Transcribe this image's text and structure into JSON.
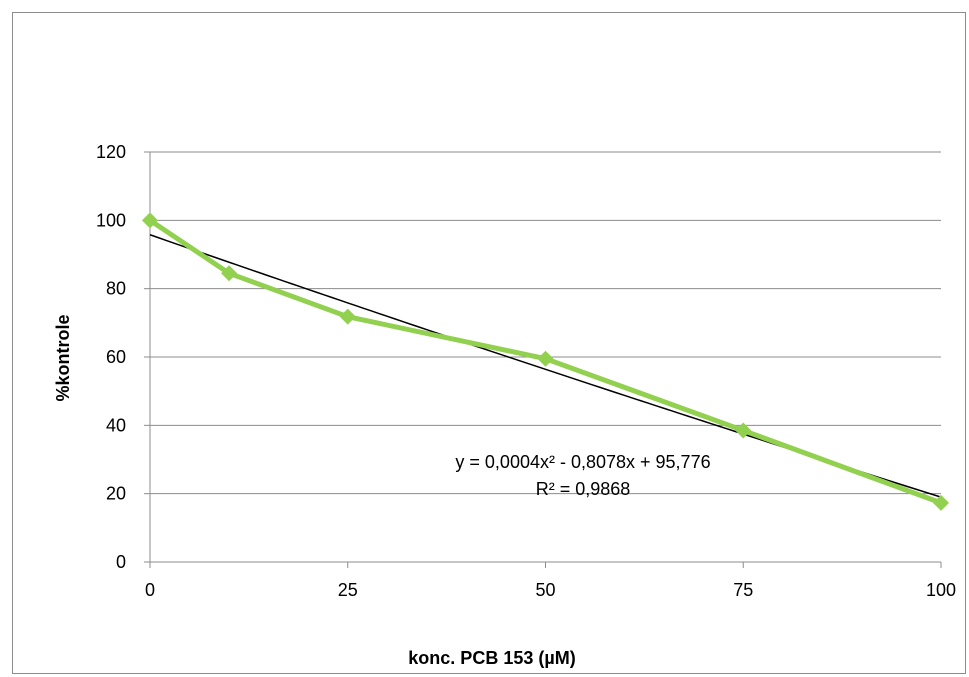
{
  "chart_data": {
    "type": "line",
    "xlabel": "konc. PCB 153 (µM)",
    "ylabel": "%kontrole",
    "x_ticks": [
      "0",
      "25",
      "50",
      "75",
      "100"
    ],
    "y_ticks": [
      "0",
      "20",
      "40",
      "60",
      "80",
      "100",
      "120"
    ],
    "xlim": [
      0,
      100
    ],
    "ylim": [
      0,
      120
    ],
    "grid": "horizontal",
    "series": [
      {
        "color": "#92d050",
        "marker": "diamond",
        "points": [
          {
            "x": 0,
            "y": 100
          },
          {
            "x": 10,
            "y": 84.5
          },
          {
            "x": 25,
            "y": 71.8
          },
          {
            "x": 50,
            "y": 59.5
          },
          {
            "x": 75,
            "y": 38.5
          },
          {
            "x": 100,
            "y": 17.3
          }
        ]
      }
    ],
    "trendline": {
      "type": "polynomial",
      "color": "#000000",
      "coefficients": {
        "a2": 0.0004,
        "a1": -0.8078,
        "a0": 95.776
      }
    },
    "annotations": {
      "equation": "y = 0,0004x² - 0,8078x + 95,776",
      "r_squared": "R² = 0,9868"
    }
  }
}
